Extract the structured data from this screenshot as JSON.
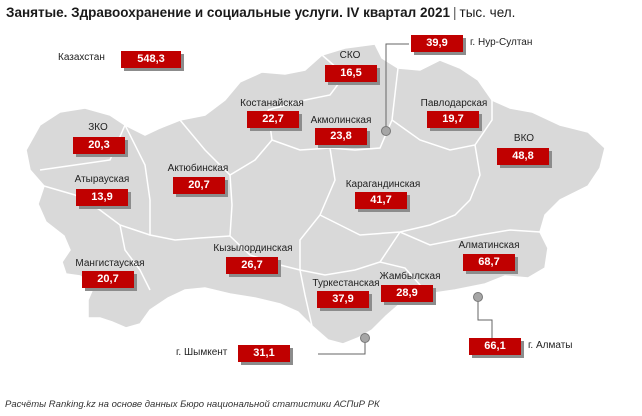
{
  "title": {
    "main": "Занятые. Здравоохранение и социальные услуги. IV квартал 2021",
    "separator": "|",
    "unit": "тыс. чел."
  },
  "colors": {
    "value_box": "#c00000",
    "map_fill": "#d9d9d9",
    "border": "#ffffff"
  },
  "total": {
    "name": "Казахстан",
    "value": "548,3"
  },
  "regions": [
    {
      "id": "zko",
      "name": "ЗКО",
      "value": "20,3"
    },
    {
      "id": "atyrau",
      "name": "Атырауская",
      "value": "13,9"
    },
    {
      "id": "mangystau",
      "name": "Мангистауская",
      "value": "20,7"
    },
    {
      "id": "aktobe",
      "name": "Актюбинская",
      "value": "20,7"
    },
    {
      "id": "kostanay",
      "name": "Костанайская",
      "value": "22,7"
    },
    {
      "id": "sko",
      "name": "СКО",
      "value": "16,5"
    },
    {
      "id": "akmola",
      "name": "Акмолинская",
      "value": "23,8"
    },
    {
      "id": "pavlodar",
      "name": "Павлодарская",
      "value": "19,7"
    },
    {
      "id": "vko",
      "name": "ВКО",
      "value": "48,8"
    },
    {
      "id": "karaganda",
      "name": "Карагандинская",
      "value": "41,7"
    },
    {
      "id": "kyzylorda",
      "name": "Кызылординская",
      "value": "26,7"
    },
    {
      "id": "turkestan",
      "name": "Туркестанская",
      "value": "37,9"
    },
    {
      "id": "zhambyl",
      "name": "Жамбылская",
      "value": "28,9"
    },
    {
      "id": "almaty_region",
      "name": "Алматинская",
      "value": "68,7"
    }
  ],
  "cities": [
    {
      "id": "nursultan",
      "name": "г. Нур-Султан",
      "value": "39,9"
    },
    {
      "id": "almaty",
      "name": "г. Алматы",
      "value": "66,1"
    },
    {
      "id": "shymkent",
      "name": "г. Шымкент",
      "value": "31,1"
    }
  ],
  "footer": "Расчёты Ranking.kz на основе данных Бюро национальной статистики АСПиР РК"
}
